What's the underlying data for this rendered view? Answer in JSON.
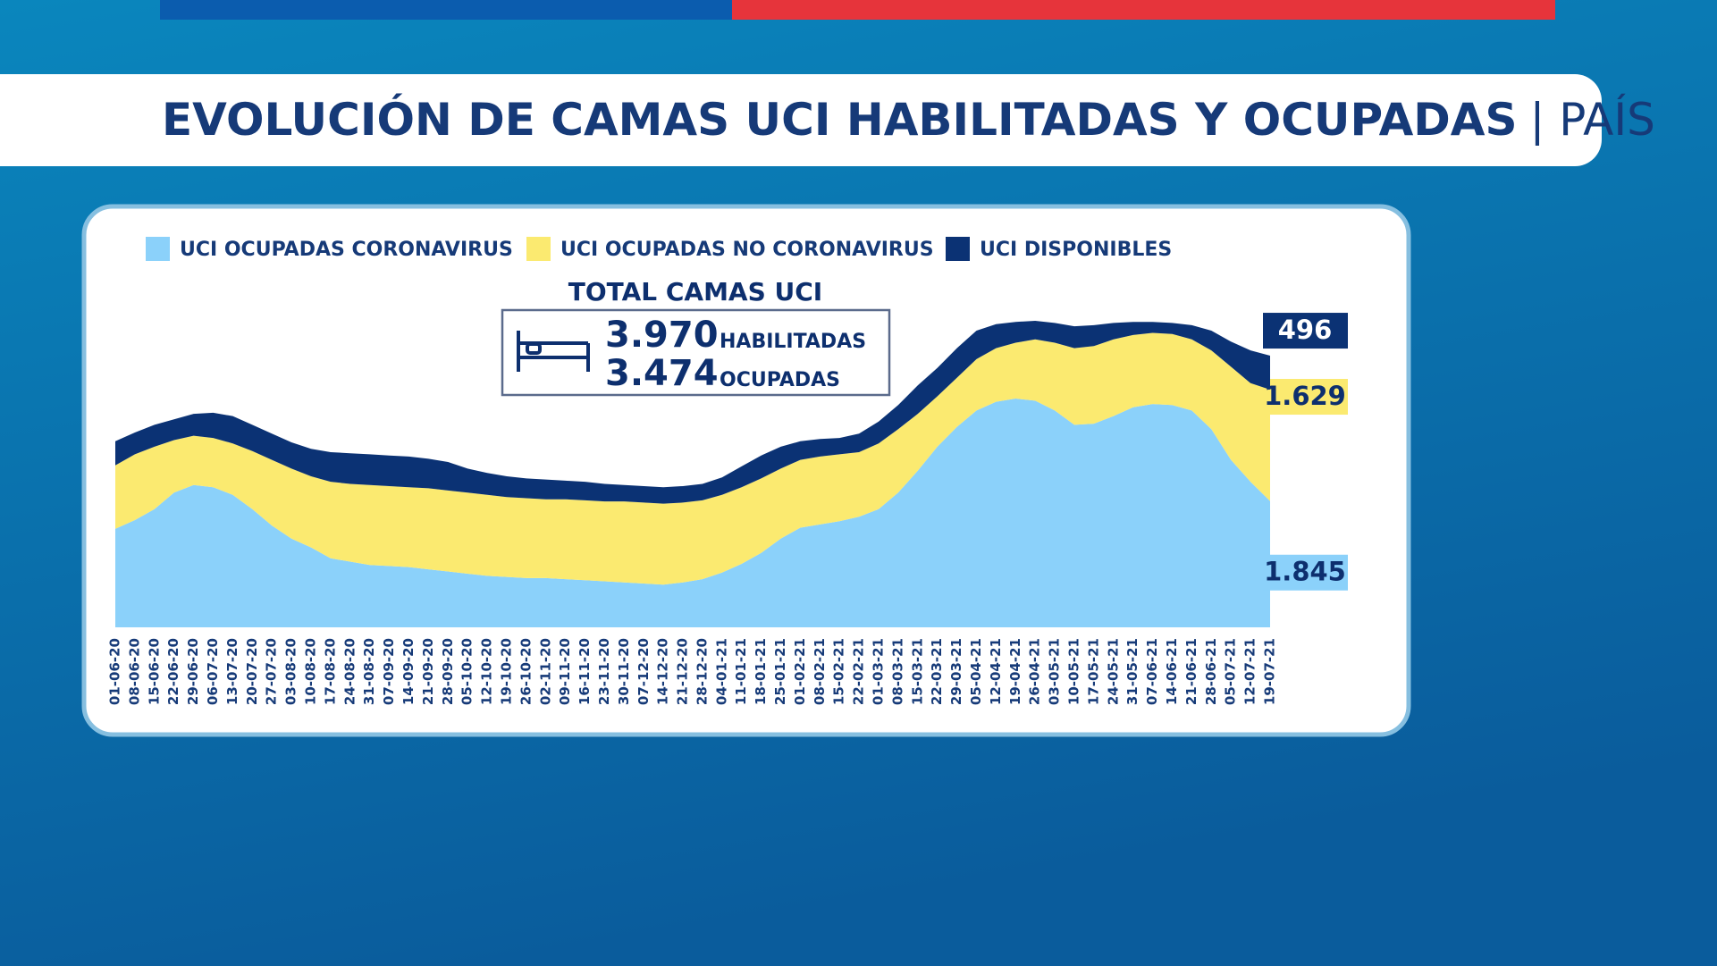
{
  "chart_data": {
    "type": "stacked_area",
    "title": "EVOLUCIÓN DE CAMAS UCI HABILITADAS Y OCUPADAS",
    "title_suffix": "| PAÍS",
    "summary": {
      "title": "TOTAL CAMAS UCI",
      "items": [
        {
          "value": "3.970",
          "label": "HABILITADAS"
        },
        {
          "value": "3.474",
          "label": "OCUPADAS"
        }
      ]
    },
    "categories": [
      "01-06-20",
      "08-06-20",
      "15-06-20",
      "22-06-20",
      "29-06-20",
      "06-07-20",
      "13-07-20",
      "20-07-20",
      "27-07-20",
      "03-08-20",
      "10-08-20",
      "17-08-20",
      "24-08-20",
      "31-08-20",
      "07-09-20",
      "14-09-20",
      "21-09-20",
      "28-09-20",
      "05-10-20",
      "12-10-20",
      "19-10-20",
      "26-10-20",
      "02-11-20",
      "09-11-20",
      "16-11-20",
      "23-11-20",
      "30-11-20",
      "07-12-20",
      "14-12-20",
      "21-12-20",
      "28-12-20",
      "04-01-21",
      "11-01-21",
      "18-01-21",
      "25-01-21",
      "01-02-21",
      "08-02-21",
      "15-02-21",
      "22-02-21",
      "01-03-21",
      "08-03-21",
      "15-03-21",
      "22-03-21",
      "29-03-21",
      "05-04-21",
      "12-04-21",
      "19-04-21",
      "26-04-21",
      "03-05-21",
      "10-05-21",
      "17-05-21",
      "24-05-21",
      "31-05-21",
      "07-06-21",
      "14-06-21",
      "21-06-21",
      "28-06-21",
      "05-07-21",
      "12-07-21",
      "19-07-21"
    ],
    "legend_position": "top",
    "series": [
      {
        "name": "UCI OCUPADAS CORONAVIRUS",
        "color": "#8bd1fa",
        "label_text_color": "#0d2f6e",
        "values": [
          1440,
          1568,
          1728,
          1968,
          2080,
          2048,
          1936,
          1728,
          1488,
          1296,
          1168,
          1008,
          960,
          912,
          896,
          880,
          848,
          816,
          784,
          752,
          736,
          720,
          720,
          704,
          688,
          672,
          656,
          640,
          624,
          656,
          704,
          800,
          928,
          1088,
          1296,
          1456,
          1504,
          1552,
          1616,
          1728,
          1968,
          2288,
          2640,
          2928,
          3168,
          3296,
          3344,
          3312,
          3168,
          2960,
          2976,
          3088,
          3216,
          3264,
          3248,
          3168,
          2896,
          2448,
          2128,
          1845
        ],
        "value_labels": [
          null,
          null,
          null,
          null,
          null,
          null,
          null,
          null,
          null,
          null,
          null,
          null,
          null,
          null,
          null,
          null,
          null,
          null,
          null,
          null,
          null,
          null,
          null,
          null,
          null,
          null,
          null,
          null,
          null,
          null,
          null,
          null,
          null,
          null,
          null,
          null,
          null,
          null,
          null,
          null,
          null,
          null,
          null,
          null,
          null,
          null,
          null,
          null,
          null,
          null,
          null,
          null,
          null,
          null,
          null,
          null,
          null,
          null,
          null,
          "1.845"
        ]
      },
      {
        "name": "UCI OCUPADAS NO CORONAVIRUS",
        "color": "#fbea70",
        "label_text_color": "#0d2f6e",
        "values": [
          928,
          960,
          912,
          768,
          720,
          720,
          752,
          848,
          960,
          1024,
          1040,
          1120,
          1136,
          1168,
          1168,
          1168,
          1184,
          1184,
          1184,
          1184,
          1168,
          1168,
          1152,
          1168,
          1168,
          1168,
          1184,
          1184,
          1184,
          1168,
          1152,
          1136,
          1120,
          1088,
          1024,
          992,
          992,
          976,
          944,
          960,
          928,
          832,
          736,
          720,
          752,
          784,
          816,
          896,
          992,
          1120,
          1136,
          1120,
          1056,
          1040,
          1040,
          1040,
          1152,
          1360,
          1440,
          1629
        ],
        "value_labels": [
          null,
          null,
          null,
          null,
          null,
          null,
          null,
          null,
          null,
          null,
          null,
          null,
          null,
          null,
          null,
          null,
          null,
          null,
          null,
          null,
          null,
          null,
          null,
          null,
          null,
          null,
          null,
          null,
          null,
          null,
          null,
          null,
          null,
          null,
          null,
          null,
          null,
          null,
          null,
          null,
          null,
          null,
          null,
          null,
          null,
          null,
          null,
          null,
          null,
          null,
          null,
          null,
          null,
          null,
          null,
          null,
          null,
          null,
          null,
          "1.629"
        ]
      },
      {
        "name": "UCI DISPONIBLES",
        "color": "#0b3274",
        "label_text_color": "#ffffff",
        "values": [
          352,
          320,
          320,
          304,
          320,
          368,
          400,
          384,
          384,
          384,
          400,
          432,
          448,
          448,
          448,
          448,
          432,
          416,
          352,
          320,
          304,
          288,
          288,
          272,
          272,
          256,
          240,
          240,
          240,
          240,
          240,
          256,
          304,
          336,
          320,
          272,
          256,
          240,
          272,
          320,
          352,
          416,
          416,
          432,
          416,
          352,
          304,
          272,
          288,
          320,
          304,
          240,
          192,
          160,
          160,
          208,
          288,
          368,
          480,
          496
        ]
      }
    ]
  }
}
